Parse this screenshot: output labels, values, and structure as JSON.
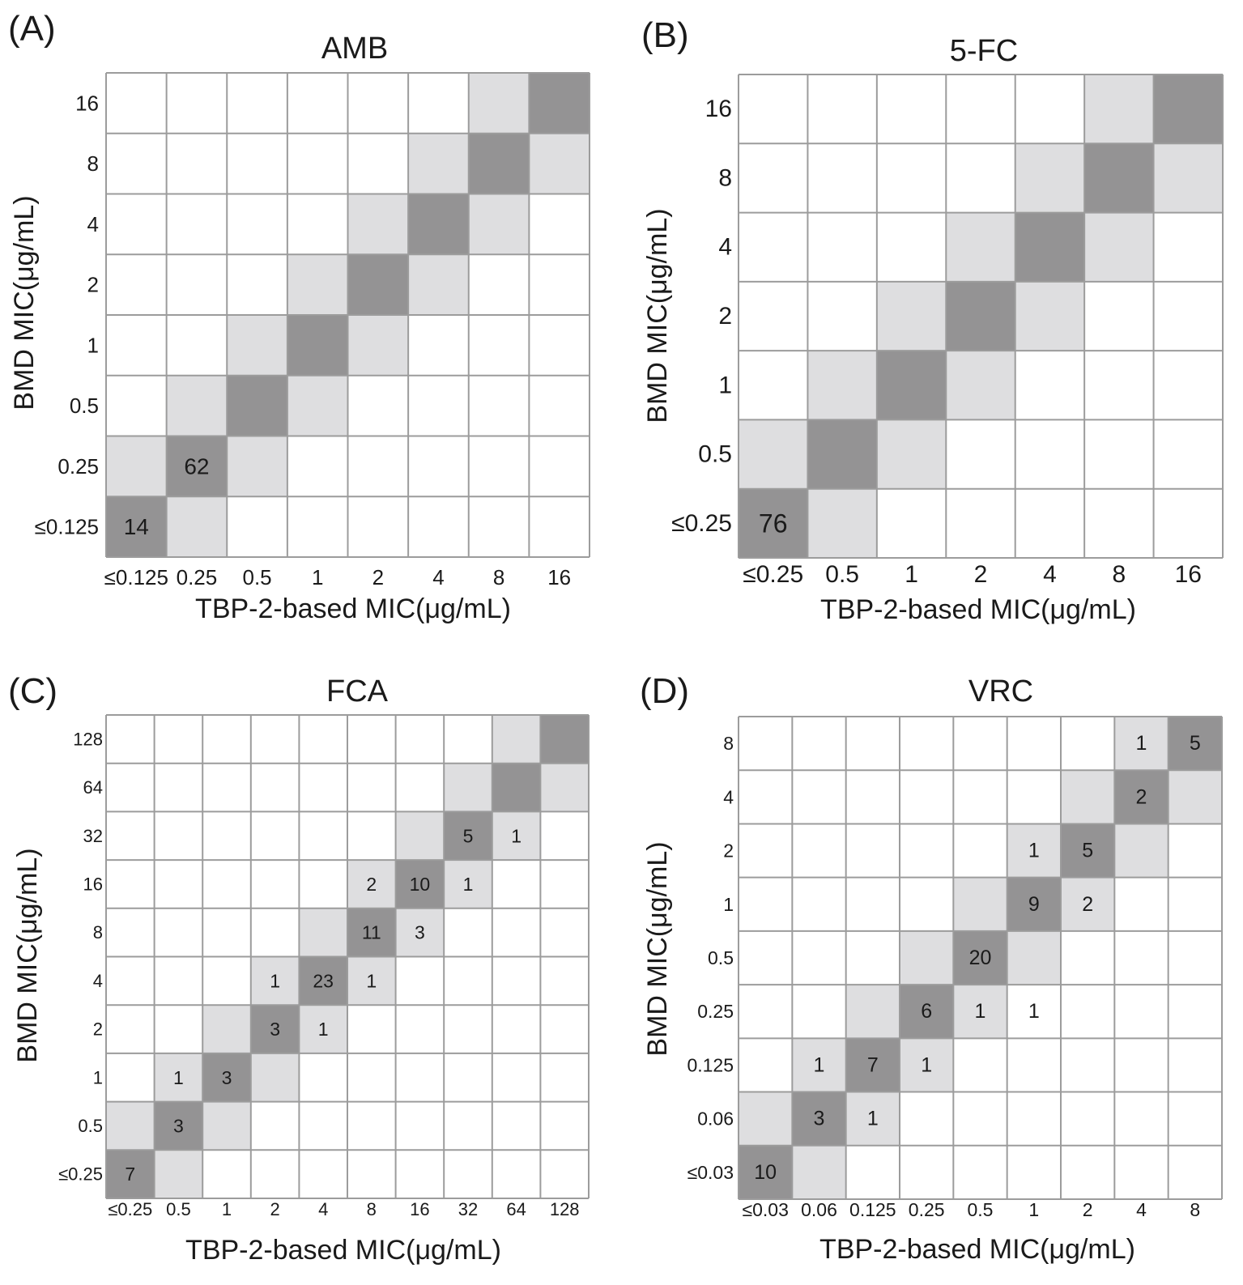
{
  "colors": {
    "diagonal": "#949394",
    "near_diagonal": "#dedee0",
    "empty": "#ffffff",
    "grid": "#9c9c9c",
    "text": "#1a1a1a",
    "highlight_text": "#c8371e"
  },
  "chart_data": [
    {
      "type": "heatmap",
      "panel_label": "(A)",
      "title": "AMB",
      "xlabel": "TBP-2-based MIC(μg/mL)",
      "ylabel": "BMD MIC(μg/mL)",
      "x_categories": [
        "≤0.125",
        "0.25",
        "0.5",
        "1",
        "2",
        "4",
        "8",
        "16"
      ],
      "y_categories": [
        "16",
        "8",
        "4",
        "2",
        "1",
        "0.5",
        "0.25",
        "≤0.125"
      ],
      "counts": [
        {
          "x": "≤0.125",
          "y": "≤0.125",
          "value": 14
        },
        {
          "x": "0.25",
          "y": "0.25",
          "value": 62
        }
      ]
    },
    {
      "type": "heatmap",
      "panel_label": "(B)",
      "title": "5-FC",
      "xlabel": "TBP-2-based MIC(μg/mL)",
      "ylabel": "BMD MIC(μg/mL)",
      "x_categories": [
        "≤0.25",
        "0.5",
        "1",
        "2",
        "4",
        "8",
        "16"
      ],
      "y_categories": [
        "16",
        "8",
        "4",
        "2",
        "1",
        "0.5",
        "≤0.25"
      ],
      "counts": [
        {
          "x": "≤0.25",
          "y": "≤0.25",
          "value": 76
        }
      ]
    },
    {
      "type": "heatmap",
      "panel_label": "(C)",
      "title": "FCA",
      "xlabel": "TBP-2-based MIC(μg/mL)",
      "ylabel": "BMD MIC(μg/mL)",
      "x_categories": [
        "≤0.25",
        "0.5",
        "1",
        "2",
        "4",
        "8",
        "16",
        "32",
        "64",
        "128"
      ],
      "y_categories": [
        "128",
        "64",
        "32",
        "16",
        "8",
        "4",
        "2",
        "1",
        "0.5",
        "≤0.25"
      ],
      "counts": [
        {
          "x": "32",
          "y": "32",
          "value": 5
        },
        {
          "x": "64",
          "y": "32",
          "value": 1
        },
        {
          "x": "8",
          "y": "16",
          "value": 2
        },
        {
          "x": "16",
          "y": "16",
          "value": 10
        },
        {
          "x": "32",
          "y": "16",
          "value": 1
        },
        {
          "x": "8",
          "y": "8",
          "value": 11
        },
        {
          "x": "16",
          "y": "8",
          "value": 3
        },
        {
          "x": "2",
          "y": "4",
          "value": 1
        },
        {
          "x": "4",
          "y": "4",
          "value": 23
        },
        {
          "x": "8",
          "y": "4",
          "value": 1
        },
        {
          "x": "2",
          "y": "2",
          "value": 3
        },
        {
          "x": "4",
          "y": "2",
          "value": 1
        },
        {
          "x": "0.5",
          "y": "1",
          "value": 1
        },
        {
          "x": "1",
          "y": "1",
          "value": 3
        },
        {
          "x": "0.5",
          "y": "0.5",
          "value": 3
        },
        {
          "x": "≤0.25",
          "y": "≤0.25",
          "value": 7
        }
      ]
    },
    {
      "type": "heatmap",
      "panel_label": "(D)",
      "title": "VRC",
      "xlabel": "TBP-2-based MIC(μg/mL)",
      "ylabel": "BMD MIC(μg/mL)",
      "x_categories": [
        "≤0.03",
        "0.06",
        "0.125",
        "0.25",
        "0.5",
        "1",
        "2",
        "4",
        "8"
      ],
      "y_categories": [
        "8",
        "4",
        "2",
        "1",
        "0.5",
        "0.25",
        "0.125",
        "0.06",
        "≤0.03"
      ],
      "counts": [
        {
          "x": "4",
          "y": "8",
          "value": 1
        },
        {
          "x": "8",
          "y": "8",
          "value": 5
        },
        {
          "x": "4",
          "y": "4",
          "value": 2
        },
        {
          "x": "1",
          "y": "2",
          "value": 1
        },
        {
          "x": "2",
          "y": "2",
          "value": 5
        },
        {
          "x": "1",
          "y": "1",
          "value": 9
        },
        {
          "x": "2",
          "y": "1",
          "value": 2
        },
        {
          "x": "0.5",
          "y": "0.5",
          "value": 20
        },
        {
          "x": "0.25",
          "y": "0.25",
          "value": 6
        },
        {
          "x": "0.5",
          "y": "0.25",
          "value": 1
        },
        {
          "x": "1",
          "y": "0.25",
          "value": 1,
          "highlight": true
        },
        {
          "x": "0.06",
          "y": "0.125",
          "value": 1
        },
        {
          "x": "0.125",
          "y": "0.125",
          "value": 7
        },
        {
          "x": "0.25",
          "y": "0.125",
          "value": 1
        },
        {
          "x": "0.06",
          "y": "0.06",
          "value": 3
        },
        {
          "x": "0.125",
          "y": "0.06",
          "value": 1
        },
        {
          "x": "≤0.03",
          "y": "≤0.03",
          "value": 10
        }
      ]
    }
  ]
}
